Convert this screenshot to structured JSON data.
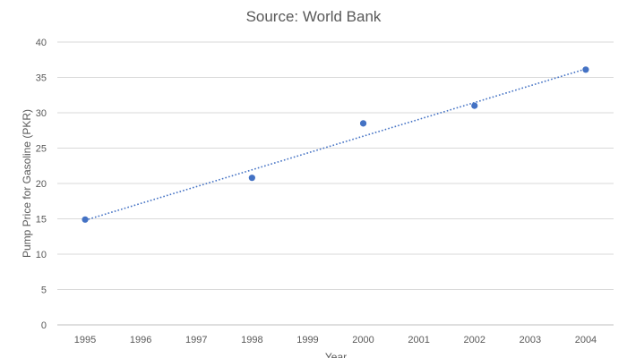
{
  "chart_data": {
    "type": "scatter",
    "title": "Source: World Bank",
    "xlabel": "Year",
    "ylabel": "Pump Price for Gasoline (PKR)",
    "x_categories": [
      "1995",
      "1996",
      "1997",
      "1998",
      "1999",
      "2000",
      "2001",
      "2002",
      "2003",
      "2004"
    ],
    "ylim": [
      0,
      40
    ],
    "yticks": [
      0,
      5,
      10,
      15,
      20,
      25,
      30,
      35,
      40
    ],
    "grid": true,
    "legend": "none",
    "series": [
      {
        "points": [
          {
            "x": "1995",
            "y": 14.9
          },
          {
            "x": "1998",
            "y": 20.8
          },
          {
            "x": "2000",
            "y": 28.5
          },
          {
            "x": "2002",
            "y": 31.0
          },
          {
            "x": "2004",
            "y": 36.1
          }
        ],
        "color": "#4472c4"
      }
    ],
    "trendline": {
      "type": "linear",
      "style": "dotted",
      "color": "#4472c4",
      "from": {
        "x": "1995",
        "y": 14.8
      },
      "to": {
        "x": "2004",
        "y": 36.2
      }
    }
  }
}
